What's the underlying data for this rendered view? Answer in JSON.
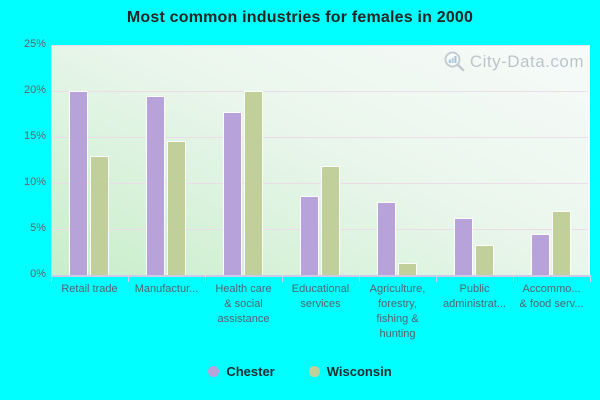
{
  "title": "Most common industries for females in 2000",
  "watermark": "City-Data.com",
  "colors": {
    "background": "#00ffff",
    "chester_bar": "#b7a2d9",
    "wisconsin_bar": "#c1d09b",
    "gridline": "#ecd9e8",
    "axis_text": "#51646c",
    "watermark_text": "#a9b4ba"
  },
  "chart_data": {
    "type": "bar",
    "title": "Most common industries for females in 2000",
    "categories": [
      "Retail trade",
      "Manufactur...",
      "Health care\n& social\nassistance",
      "Educational\nservices",
      "Agriculture,\nforestry,\nfishing &\nhunting",
      "Public\nadministrat...",
      "Accommo...\n& food serv..."
    ],
    "series": [
      {
        "name": "Chester",
        "color": "#b7a2d9",
        "values": [
          20.0,
          19.5,
          17.7,
          8.6,
          7.9,
          6.2,
          4.5
        ]
      },
      {
        "name": "Wisconsin",
        "color": "#c1d09b",
        "values": [
          12.9,
          14.6,
          20.0,
          11.9,
          1.3,
          3.3,
          7.0
        ]
      }
    ],
    "xlabel": "",
    "ylabel": "",
    "y_ticks": [
      "25%",
      "20%",
      "15%",
      "10%",
      "5%",
      "0%"
    ],
    "ylim": [
      0,
      25
    ],
    "grid": true,
    "legend_position": "bottom"
  }
}
